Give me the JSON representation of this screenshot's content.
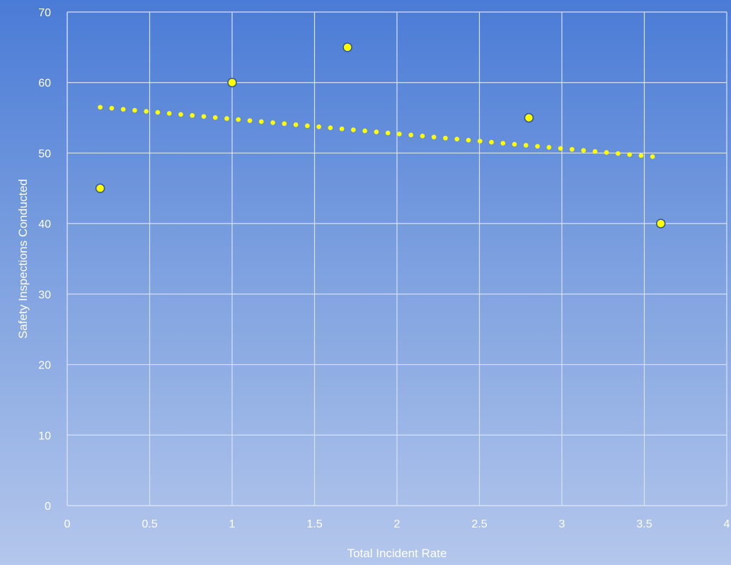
{
  "chart_data": {
    "type": "scatter",
    "title": "",
    "xlabel": "Total Incident Rate",
    "ylabel": "Safety Inspections Conducted",
    "xlim": [
      0,
      4
    ],
    "ylim": [
      0,
      70
    ],
    "x_ticks": [
      0,
      0.5,
      1,
      1.5,
      2,
      2.5,
      3,
      3.5,
      4
    ],
    "y_ticks": [
      0,
      10,
      20,
      30,
      40,
      50,
      60,
      70
    ],
    "grid": true,
    "legend": "none",
    "series": [
      {
        "points": [
          {
            "x": 0.2,
            "y": 45
          },
          {
            "x": 1.0,
            "y": 60
          },
          {
            "x": 1.7,
            "y": 65
          },
          {
            "x": 2.8,
            "y": 55
          },
          {
            "x": 3.6,
            "y": 40
          }
        ],
        "marker_color": "#ffff00"
      }
    ],
    "trendline": {
      "style": "dotted",
      "color": "#ffff00",
      "x_start": 0.2,
      "x_end": 3.55,
      "y_start": 56.5,
      "y_end": 49.5
    }
  }
}
